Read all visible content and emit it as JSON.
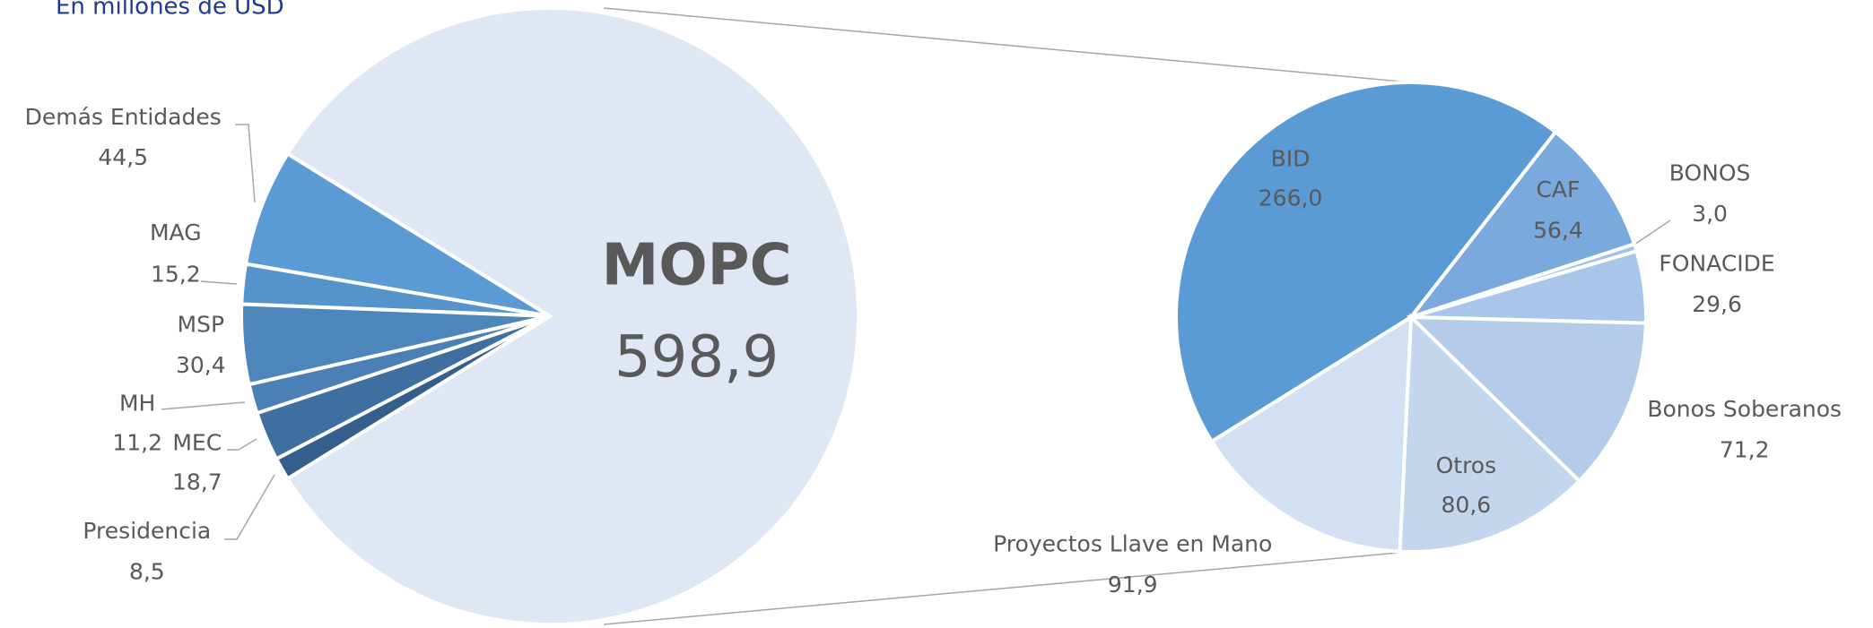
{
  "chart_data": [
    {
      "type": "pie",
      "subtitle": "En millones de USD",
      "categories": [
        "MOPC",
        "Demás Entidades",
        "MAG",
        "MSP",
        "MH",
        "MEC",
        "Presidencia"
      ],
      "values": [
        598.9,
        44.5,
        15.2,
        30.4,
        11.2,
        18.7,
        8.5
      ],
      "value_labels": [
        "598,9",
        "44,5",
        "15,2",
        "30,4",
        "11,2",
        "18,7",
        "8,5"
      ],
      "colors": [
        "#dfe6f4",
        "#5b9bd5",
        "#5593cb",
        "#4d86bb",
        "#4a80b5",
        "#3f6fa0",
        "#345f8c"
      ]
    },
    {
      "type": "pie",
      "categories": [
        "BID",
        "CAF",
        "BONOS",
        "FONACIDE",
        "Bonos Soberanos",
        "Otros",
        "Proyectos Llave en Mano"
      ],
      "values": [
        266.0,
        56.4,
        3.0,
        29.6,
        71.2,
        80.6,
        91.9
      ],
      "value_labels": [
        "266,0",
        "56,4",
        "3,0",
        "29,6",
        "71,2",
        "80,6",
        "91,9"
      ],
      "colors": [
        "#5b9bd5",
        "#7aa9de",
        "#a0c0e8",
        "#a9c5ea",
        "#b4cbea",
        "#c4d5ee",
        "#d3dff2"
      ]
    }
  ]
}
